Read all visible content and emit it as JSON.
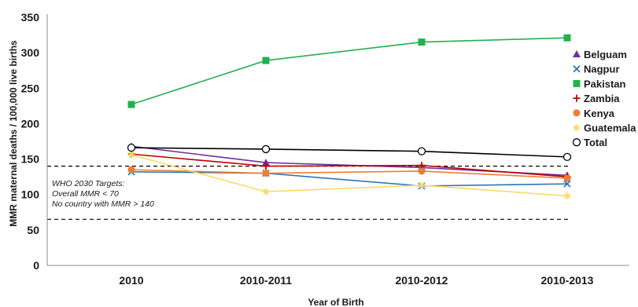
{
  "chart_data": {
    "type": "line",
    "xlabel": "Year of Birth",
    "ylabel": "MMR maternal deaths / 100,000 live births",
    "categories": [
      "2010",
      "2010-2011",
      "2010-2012",
      "2010-2013"
    ],
    "ylim": [
      0,
      350
    ],
    "yticks": [
      0,
      50,
      100,
      150,
      200,
      250,
      300,
      350
    ],
    "grid": false,
    "legend_position": "right",
    "series": [
      {
        "name": "Belguam",
        "values": [
          168,
          145,
          138,
          127
        ],
        "color": "#7030a0",
        "marker": "triangle"
      },
      {
        "name": "Nagpur",
        "values": [
          132,
          130,
          112,
          115
        ],
        "color": "#2e75b6",
        "marker": "x"
      },
      {
        "name": "Pakistan",
        "values": [
          227,
          289,
          315,
          321
        ],
        "color": "#22b14c",
        "marker": "square"
      },
      {
        "name": "Zambia",
        "values": [
          157,
          140,
          141,
          125
        ],
        "color": "#c00000",
        "marker": "plus"
      },
      {
        "name": "Kenya",
        "values": [
          135,
          130,
          133,
          123
        ],
        "color": "#ed7d31",
        "marker": "circle"
      },
      {
        "name": "Guatemala",
        "values": [
          156,
          104,
          113,
          98
        ],
        "color": "#ffd966",
        "marker": "star"
      },
      {
        "name": "Total",
        "values": [
          166,
          164,
          161,
          153
        ],
        "color": "#000000",
        "marker": "open-circle"
      }
    ],
    "reference_lines": [
      {
        "value": 140,
        "style": "dashed",
        "color": "#000000"
      },
      {
        "value": 65,
        "style": "dashed",
        "color": "#000000"
      }
    ],
    "annotation": [
      "WHO 2030 Targets:",
      "Overall  MMR < 70",
      "No country with MMR > 140"
    ]
  }
}
